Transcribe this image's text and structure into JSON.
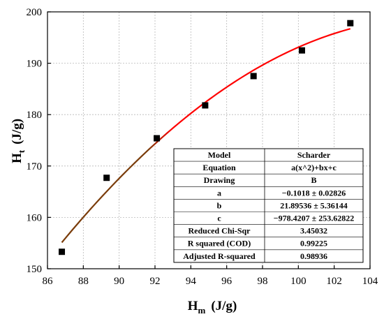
{
  "chart_data": {
    "type": "scatter",
    "title": "",
    "xlabel": {
      "main": "H",
      "sub": "m",
      "unit": "(J/g)"
    },
    "ylabel": {
      "main": "H",
      "sub": "t",
      "unit": "(J/g)"
    },
    "xlim": [
      86,
      104
    ],
    "ylim": [
      150,
      200
    ],
    "xticks": [
      "86",
      "88",
      "90",
      "92",
      "94",
      "96",
      "98",
      "100",
      "102",
      "104"
    ],
    "yticks": [
      "150",
      "160",
      "170",
      "180",
      "190",
      "200"
    ],
    "grid": true,
    "series": [
      {
        "kind": "points",
        "x": [
          86.8,
          89.3,
          92.1,
          94.8,
          97.5,
          100.2,
          102.9
        ],
        "y": [
          153.3,
          167.7,
          175.4,
          181.8,
          187.5,
          192.5,
          197.8
        ],
        "color": "#000000"
      },
      {
        "kind": "fit-line",
        "equation": {
          "a": -0.1018,
          "b": 21.89536,
          "c": -978.4207
        },
        "x_range": [
          86.8,
          102.9
        ],
        "color_start": "#7a3c0a",
        "color_end": "#ff0000"
      }
    ],
    "fit_table": {
      "rows": [
        [
          "Model",
          "Scharder"
        ],
        [
          "Equation",
          "a(x^2)+bx+c"
        ],
        [
          "Drawing",
          "B"
        ],
        [
          "a",
          "−0.1018 ± 0.02826"
        ],
        [
          "b",
          "21.89536 ± 5.36144"
        ],
        [
          "c",
          "−978.4207 ± 253.62822"
        ],
        [
          "Reduced Chi-Sqr",
          "3.45032"
        ],
        [
          "R squared (COD)",
          "0.99225"
        ],
        [
          "Adjusted R-squared",
          "0.98936"
        ]
      ],
      "placement": "bottom-right"
    }
  }
}
